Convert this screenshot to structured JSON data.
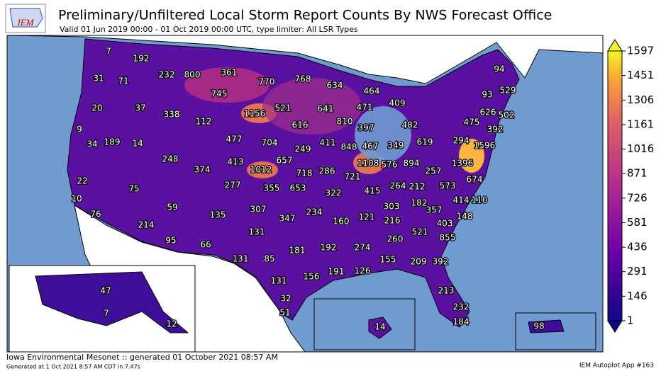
{
  "header": {
    "title": "Preliminary/Unfiltered Local Storm Report Counts By NWS Forecast Office",
    "subtitle": "Valid 01 Jun 2019 00:00 - 01 Oct 2019 00:00 UTC, type limiter: All LSR Types"
  },
  "logo": "IEM",
  "labels": [
    7,
    192,
    31,
    71,
    232,
    800,
    361,
    770,
    768,
    634,
    464,
    94,
    745,
    93,
    529,
    20,
    37,
    338,
    1156,
    521,
    641,
    471,
    409,
    626,
    502,
    112,
    616,
    810,
    397,
    482,
    475,
    392,
    9,
    477,
    704,
    411,
    848,
    467,
    349,
    619,
    294,
    1596,
    34,
    189,
    14,
    249,
    248,
    413,
    657,
    1108,
    576,
    894,
    1396,
    374,
    1012,
    718,
    286,
    721,
    257,
    674,
    22,
    75,
    277,
    355,
    653,
    322,
    415,
    264,
    212,
    573,
    10,
    414,
    110,
    59,
    307,
    234,
    303,
    182,
    357,
    148,
    76,
    214,
    347,
    160,
    121,
    216,
    403,
    135,
    131,
    521,
    855,
    95,
    66,
    260,
    181,
    192,
    274,
    131,
    85,
    155,
    209,
    392,
    131,
    156,
    191,
    126,
    47,
    213,
    32,
    232,
    51,
    7,
    184,
    12,
    14,
    98
  ],
  "colorbar": {
    "ticks": [
      1597,
      1451,
      1306,
      1161,
      1016,
      871,
      726,
      581,
      436,
      291,
      146,
      1
    ]
  },
  "footer": {
    "left": "Iowa Environmental Mesonet :: generated 01 October 2021 08:57 AM",
    "left_small": "Generated at 1 Oct 2021 8:57 AM CDT in 7.47s",
    "right": "IEM Autoplot App #163"
  }
}
